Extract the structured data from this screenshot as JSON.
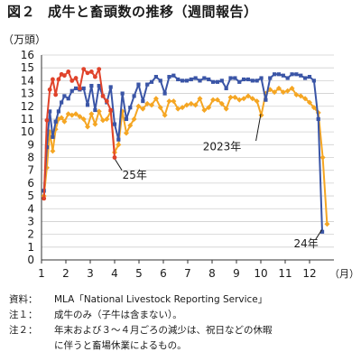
{
  "figure": {
    "number": "図２",
    "title": "成牛と畜頭数の推移（週間報告）"
  },
  "chart_data": {
    "type": "line",
    "ylabel": "（万頭）",
    "xlabel": "（月）",
    "ylim": [
      0,
      16
    ],
    "xlim": [
      1,
      13
    ],
    "yticks": [
      "0",
      "1",
      "2",
      "3",
      "4",
      "5",
      "6",
      "7",
      "8",
      "9",
      "10",
      "11",
      "12",
      "13",
      "14",
      "15",
      "16"
    ],
    "xticks": [
      "1",
      "2",
      "3",
      "4",
      "5",
      "6",
      "7",
      "8",
      "9",
      "10",
      "11",
      "12"
    ],
    "grid": "horizontal",
    "series": [
      {
        "name": "2023年",
        "color": "#3a55a6",
        "marker": "square",
        "points": [
          [
            1.1,
            5.4
          ],
          [
            1.22,
            8.8
          ],
          [
            1.34,
            11.6
          ],
          [
            1.46,
            9.6
          ],
          [
            1.58,
            10.8
          ],
          [
            1.7,
            11.6
          ],
          [
            1.82,
            12.3
          ],
          [
            1.94,
            12.8
          ],
          [
            2.1,
            12.6
          ],
          [
            2.25,
            13.2
          ],
          [
            2.41,
            13.4
          ],
          [
            2.57,
            13.3
          ],
          [
            2.73,
            13.4
          ],
          [
            2.89,
            12.1
          ],
          [
            3.05,
            13.6
          ],
          [
            3.2,
            11.7
          ],
          [
            3.36,
            13.6
          ],
          [
            3.52,
            12.8
          ],
          [
            3.68,
            12.3
          ],
          [
            3.84,
            13.5
          ],
          [
            4.0,
            10.6
          ],
          [
            4.16,
            9.4
          ],
          [
            4.32,
            13.0
          ],
          [
            4.48,
            11.0
          ],
          [
            4.64,
            11.9
          ],
          [
            4.8,
            12.8
          ],
          [
            4.98,
            13.7
          ],
          [
            5.16,
            12.4
          ],
          [
            5.34,
            13.7
          ],
          [
            5.52,
            13.9
          ],
          [
            5.7,
            14.3
          ],
          [
            5.88,
            14.0
          ],
          [
            6.06,
            13.0
          ],
          [
            6.24,
            14.3
          ],
          [
            6.42,
            14.4
          ],
          [
            6.6,
            14.1
          ],
          [
            6.78,
            14.0
          ],
          [
            6.96,
            14.0
          ],
          [
            7.14,
            14.1
          ],
          [
            7.32,
            14.2
          ],
          [
            7.5,
            14.0
          ],
          [
            7.68,
            14.2
          ],
          [
            7.86,
            14.1
          ],
          [
            8.04,
            13.9
          ],
          [
            8.22,
            13.9
          ],
          [
            8.4,
            14.0
          ],
          [
            8.58,
            13.4
          ],
          [
            8.76,
            14.2
          ],
          [
            8.94,
            14.2
          ],
          [
            9.12,
            13.9
          ],
          [
            9.3,
            14.1
          ],
          [
            9.48,
            14.1
          ],
          [
            9.66,
            14.0
          ],
          [
            9.84,
            14.0
          ],
          [
            10.02,
            14.2
          ],
          [
            10.2,
            12.5
          ],
          [
            10.38,
            14.2
          ],
          [
            10.56,
            14.5
          ],
          [
            10.74,
            14.5
          ],
          [
            10.92,
            14.4
          ],
          [
            11.1,
            14.2
          ],
          [
            11.28,
            14.5
          ],
          [
            11.46,
            14.5
          ],
          [
            11.64,
            14.4
          ],
          [
            11.82,
            14.2
          ],
          [
            12.0,
            14.3
          ],
          [
            12.18,
            14.0
          ],
          [
            12.36,
            11.0
          ],
          [
            12.52,
            2.2
          ]
        ]
      },
      {
        "name": "24年",
        "color": "#f5a623",
        "marker": "diamond",
        "points": [
          [
            1.1,
            5.0
          ],
          [
            1.22,
            7.2
          ],
          [
            1.34,
            10.0
          ],
          [
            1.46,
            8.5
          ],
          [
            1.58,
            10.2
          ],
          [
            1.7,
            11.0
          ],
          [
            1.82,
            11.1
          ],
          [
            1.94,
            10.8
          ],
          [
            2.1,
            11.4
          ],
          [
            2.25,
            11.3
          ],
          [
            2.41,
            11.4
          ],
          [
            2.57,
            11.2
          ],
          [
            2.73,
            11.0
          ],
          [
            2.89,
            10.4
          ],
          [
            3.05,
            11.4
          ],
          [
            3.2,
            10.6
          ],
          [
            3.36,
            11.6
          ],
          [
            3.52,
            10.9
          ],
          [
            3.68,
            11.0
          ],
          [
            3.84,
            11.6
          ],
          [
            4.0,
            8.4
          ],
          [
            4.16,
            9.0
          ],
          [
            4.32,
            11.6
          ],
          [
            4.48,
            9.9
          ],
          [
            4.64,
            10.5
          ],
          [
            4.8,
            11.0
          ],
          [
            4.98,
            12.0
          ],
          [
            5.16,
            11.8
          ],
          [
            5.34,
            12.2
          ],
          [
            5.52,
            12.1
          ],
          [
            5.7,
            12.6
          ],
          [
            5.88,
            11.9
          ],
          [
            6.06,
            11.3
          ],
          [
            6.24,
            12.4
          ],
          [
            6.42,
            12.4
          ],
          [
            6.6,
            11.8
          ],
          [
            6.78,
            11.9
          ],
          [
            6.96,
            12.1
          ],
          [
            7.14,
            12.2
          ],
          [
            7.32,
            12.1
          ],
          [
            7.5,
            12.6
          ],
          [
            7.68,
            11.7
          ],
          [
            7.86,
            11.9
          ],
          [
            8.04,
            12.5
          ],
          [
            8.22,
            12.5
          ],
          [
            8.4,
            12.2
          ],
          [
            8.58,
            11.8
          ],
          [
            8.76,
            12.7
          ],
          [
            8.94,
            12.7
          ],
          [
            9.12,
            12.5
          ],
          [
            9.3,
            12.6
          ],
          [
            9.48,
            12.8
          ],
          [
            9.66,
            12.6
          ],
          [
            9.84,
            12.4
          ],
          [
            10.02,
            11.3
          ],
          [
            10.2,
            13.0
          ],
          [
            10.38,
            13.3
          ],
          [
            10.56,
            13.1
          ],
          [
            10.74,
            13.4
          ],
          [
            10.92,
            13.1
          ],
          [
            11.1,
            13.2
          ],
          [
            11.28,
            13.4
          ],
          [
            11.46,
            12.9
          ],
          [
            11.64,
            12.8
          ],
          [
            11.82,
            12.6
          ],
          [
            12.0,
            12.3
          ],
          [
            12.18,
            11.9
          ],
          [
            12.36,
            11.5
          ],
          [
            12.54,
            8.0
          ],
          [
            12.72,
            2.8
          ]
        ]
      },
      {
        "name": "25年",
        "color": "#e0432b",
        "marker": "circle",
        "points": [
          [
            1.1,
            4.8
          ],
          [
            1.22,
            10.9
          ],
          [
            1.34,
            13.3
          ],
          [
            1.46,
            14.1
          ],
          [
            1.58,
            12.9
          ],
          [
            1.7,
            14.1
          ],
          [
            1.82,
            14.5
          ],
          [
            1.94,
            14.4
          ],
          [
            2.1,
            14.7
          ],
          [
            2.25,
            14.0
          ],
          [
            2.41,
            14.2
          ],
          [
            2.57,
            13.4
          ],
          [
            2.73,
            14.9
          ],
          [
            2.89,
            14.6
          ],
          [
            3.05,
            14.7
          ],
          [
            3.2,
            14.3
          ],
          [
            3.36,
            14.9
          ],
          [
            3.52,
            12.8
          ],
          [
            3.68,
            12.4
          ],
          [
            3.84,
            11.7
          ],
          [
            4.0,
            8.0
          ]
        ]
      }
    ],
    "annotations": {
      "y2023": "2023年",
      "y24": "24年",
      "y25": "25年"
    }
  },
  "notes": [
    {
      "key": "資料：",
      "text": "MLA「National Livestock Reporting Service」"
    },
    {
      "key": "注１：",
      "text": "成牛のみ（子牛は含まない）。"
    },
    {
      "key": "注２：",
      "text": "年末および３～４月ごろの減少は、祝日などの休暇"
    }
  ],
  "note_cont": "に伴うと畜場休業によるもの。"
}
